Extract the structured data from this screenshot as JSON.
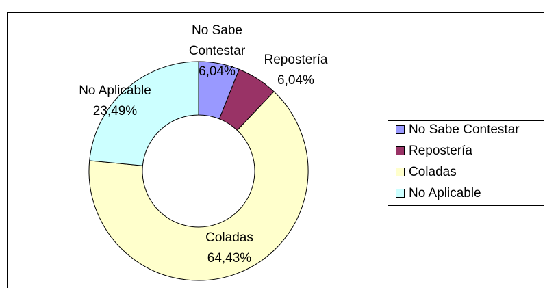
{
  "chart_data": {
    "type": "donut",
    "categories": [
      "No Sabe Contestar",
      "Repostería",
      "Coladas",
      "No Aplicable"
    ],
    "values": [
      6.04,
      6.04,
      64.43,
      23.49
    ],
    "value_labels": [
      "6,04%",
      "6,04%",
      "64,43%",
      "23,49%"
    ],
    "colors": [
      "#9999ff",
      "#993366",
      "#ffffcc",
      "#ccffff"
    ],
    "legend": "right"
  }
}
